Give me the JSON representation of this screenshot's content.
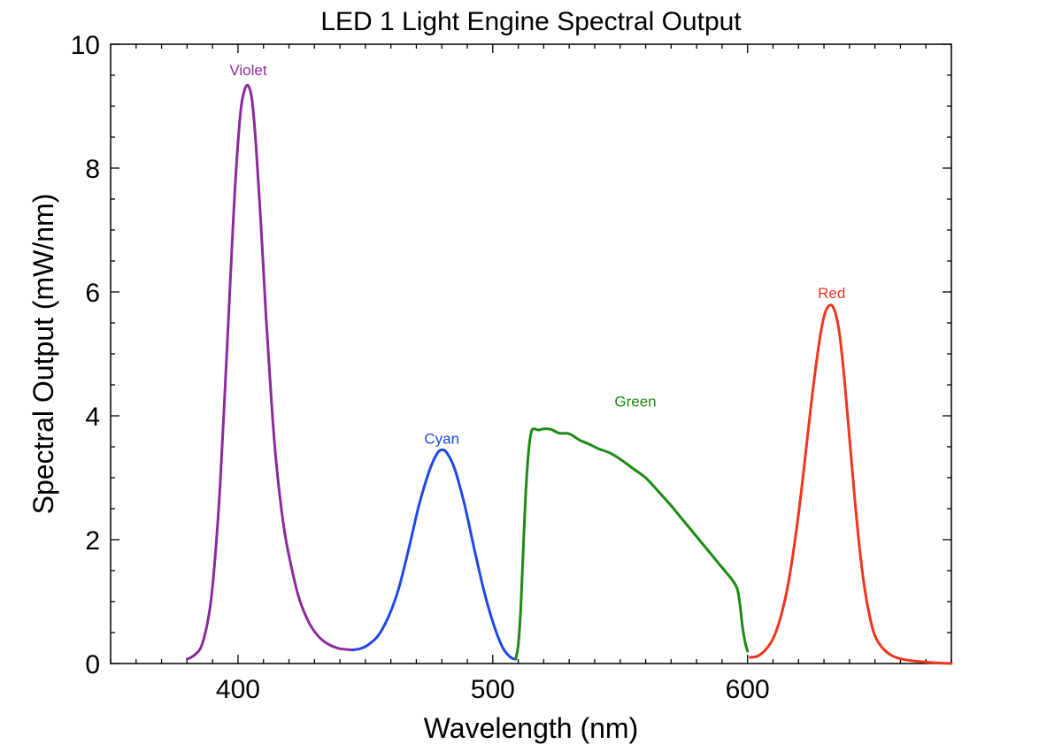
{
  "chart_data": {
    "type": "line",
    "title": "LED 1 Light Engine Spectral Output",
    "xlabel": "Wavelength (nm)",
    "ylabel": "Spectral Output (mW/nm)",
    "xlim": [
      350,
      680
    ],
    "ylim": [
      0,
      10
    ],
    "x_major_ticks": [
      400,
      500,
      600
    ],
    "x_tick_labels": [
      "400",
      "500",
      "600"
    ],
    "y_major_ticks": [
      0,
      2,
      4,
      6,
      8,
      10
    ],
    "y_tick_labels": [
      "0",
      "2",
      "4",
      "6",
      "8",
      "10"
    ],
    "grid": false,
    "legend": "none",
    "series": [
      {
        "name": "Violet",
        "color": "#8B2A9C",
        "label_at": [
          404,
          9.5
        ],
        "points": [
          [
            380,
            0.07
          ],
          [
            383,
            0.14
          ],
          [
            386,
            0.32
          ],
          [
            389,
            0.9
          ],
          [
            391,
            1.7
          ],
          [
            393,
            2.9
          ],
          [
            395,
            4.5
          ],
          [
            397,
            6.2
          ],
          [
            399,
            7.8
          ],
          [
            401,
            8.9
          ],
          [
            402.5,
            9.25
          ],
          [
            404,
            9.33
          ],
          [
            405.5,
            9.1
          ],
          [
            407,
            8.4
          ],
          [
            409,
            7.1
          ],
          [
            411,
            5.6
          ],
          [
            413,
            4.3
          ],
          [
            415,
            3.25
          ],
          [
            418,
            2.2
          ],
          [
            421,
            1.55
          ],
          [
            424,
            1.05
          ],
          [
            428,
            0.65
          ],
          [
            432,
            0.42
          ],
          [
            436,
            0.3
          ],
          [
            440,
            0.24
          ],
          [
            445,
            0.22
          ]
        ]
      },
      {
        "name": "Cyan",
        "color": "#1F47E6",
        "label_at": [
          480,
          3.55
        ],
        "points": [
          [
            445,
            0.22
          ],
          [
            448,
            0.24
          ],
          [
            451,
            0.3
          ],
          [
            455,
            0.45
          ],
          [
            459,
            0.75
          ],
          [
            463,
            1.2
          ],
          [
            467,
            1.85
          ],
          [
            471,
            2.55
          ],
          [
            475,
            3.1
          ],
          [
            478,
            3.38
          ],
          [
            480,
            3.45
          ],
          [
            482,
            3.4
          ],
          [
            485,
            3.15
          ],
          [
            489,
            2.55
          ],
          [
            493,
            1.8
          ],
          [
            497,
            1.1
          ],
          [
            501,
            0.55
          ],
          [
            504,
            0.25
          ],
          [
            507,
            0.1
          ],
          [
            509,
            0.07
          ]
        ]
      },
      {
        "name": "Green",
        "color": "#1D8A15",
        "label_at": [
          556,
          4.15
        ],
        "points": [
          [
            509,
            0.07
          ],
          [
            510,
            0.3
          ],
          [
            511,
            0.9
          ],
          [
            512,
            1.9
          ],
          [
            513,
            2.8
          ],
          [
            514,
            3.4
          ],
          [
            515,
            3.72
          ],
          [
            516,
            3.79
          ],
          [
            518,
            3.77
          ],
          [
            520,
            3.79
          ],
          [
            523,
            3.78
          ],
          [
            526,
            3.72
          ],
          [
            530,
            3.71
          ],
          [
            534,
            3.61
          ],
          [
            538,
            3.54
          ],
          [
            542,
            3.46
          ],
          [
            546,
            3.4
          ],
          [
            550,
            3.3
          ],
          [
            555,
            3.15
          ],
          [
            560,
            3.0
          ],
          [
            565,
            2.78
          ],
          [
            570,
            2.55
          ],
          [
            575,
            2.3
          ],
          [
            580,
            2.05
          ],
          [
            585,
            1.8
          ],
          [
            590,
            1.55
          ],
          [
            594,
            1.35
          ],
          [
            596,
            1.2
          ],
          [
            597,
            0.95
          ],
          [
            598,
            0.6
          ],
          [
            599,
            0.35
          ],
          [
            600,
            0.2
          ]
        ]
      },
      {
        "name": "Red",
        "color": "#F0341E",
        "label_at": [
          633,
          5.9
        ],
        "points": [
          [
            601,
            0.1
          ],
          [
            604,
            0.12
          ],
          [
            607,
            0.22
          ],
          [
            610,
            0.4
          ],
          [
            613,
            0.75
          ],
          [
            616,
            1.3
          ],
          [
            619,
            2.1
          ],
          [
            622,
            3.1
          ],
          [
            625,
            4.2
          ],
          [
            628,
            5.15
          ],
          [
            630,
            5.6
          ],
          [
            632,
            5.78
          ],
          [
            634,
            5.72
          ],
          [
            636,
            5.35
          ],
          [
            638,
            4.6
          ],
          [
            640,
            3.65
          ],
          [
            642,
            2.7
          ],
          [
            644,
            1.85
          ],
          [
            646,
            1.2
          ],
          [
            648,
            0.75
          ],
          [
            650,
            0.45
          ],
          [
            653,
            0.25
          ],
          [
            657,
            0.12
          ],
          [
            662,
            0.06
          ],
          [
            668,
            0.03
          ],
          [
            674,
            0.01
          ],
          [
            680,
            0.0
          ]
        ]
      }
    ]
  }
}
